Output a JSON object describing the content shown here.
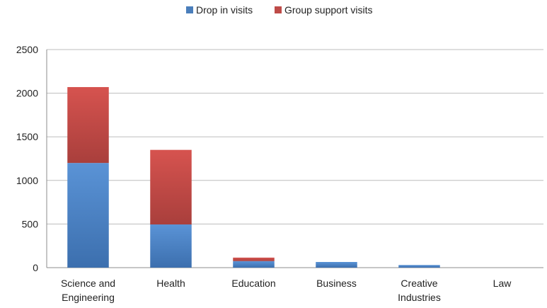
{
  "chart_data": {
    "type": "bar",
    "stacked": true,
    "title": "",
    "xlabel": "",
    "ylabel": "",
    "categories": [
      [
        "Science and",
        "Engineering"
      ],
      [
        "Health"
      ],
      [
        "Education"
      ],
      [
        "Business"
      ],
      [
        "Creative",
        "Industries"
      ],
      [
        "Law"
      ]
    ],
    "series": [
      {
        "name": "Drop in visits",
        "color": "#4a7ebb",
        "values": [
          1200,
          495,
          75,
          65,
          30,
          0
        ]
      },
      {
        "name": "Group support visits",
        "color": "#be4b48",
        "values": [
          870,
          855,
          40,
          0,
          0,
          0
        ]
      }
    ],
    "ylim": [
      0,
      2500
    ],
    "yticks": [
      0,
      500,
      1000,
      1500,
      2000,
      2500
    ],
    "grid": true,
    "legend_position": "top-center"
  }
}
